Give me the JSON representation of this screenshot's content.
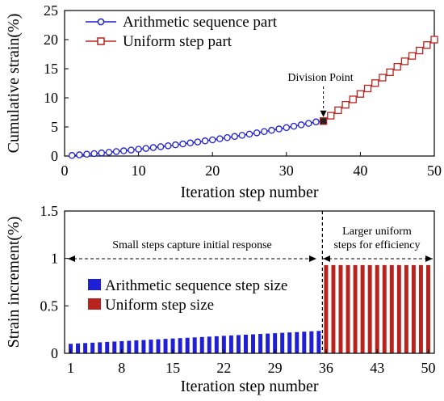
{
  "chart_data": [
    {
      "type": "line",
      "ylabel": "Cumulative strain(%)",
      "xlabel": "Iteration step number",
      "xlim": [
        0,
        50
      ],
      "ylim": [
        0,
        25
      ],
      "xticks": [
        "0",
        "10",
        "20",
        "30",
        "40",
        "50"
      ],
      "yticks": [
        "0",
        "5",
        "10",
        "15",
        "20",
        "25"
      ],
      "grid": false,
      "legend_position": "top-left",
      "annotation": "Division Point",
      "division_point": {
        "x": 35,
        "y": 6.0
      },
      "series": [
        {
          "name": "Arithmetic sequence part",
          "color": "#1f1fd6",
          "marker": "circle",
          "x": [
            1,
            2,
            3,
            4,
            5,
            6,
            7,
            8,
            9,
            10,
            11,
            12,
            13,
            14,
            15,
            16,
            17,
            18,
            19,
            20,
            21,
            22,
            23,
            24,
            25,
            26,
            27,
            28,
            29,
            30,
            31,
            32,
            33,
            34,
            35
          ],
          "y": [
            0.1,
            0.2,
            0.31,
            0.42,
            0.53,
            0.65,
            0.77,
            0.9,
            1.03,
            1.17,
            1.31,
            1.45,
            1.6,
            1.76,
            1.92,
            2.08,
            2.25,
            2.42,
            2.6,
            2.78,
            2.97,
            3.16,
            3.36,
            3.56,
            3.77,
            3.98,
            4.2,
            4.42,
            4.65,
            4.88,
            5.12,
            5.36,
            5.61,
            5.86,
            6.0
          ]
        },
        {
          "name": "Uniform step part",
          "color": "#b8231e",
          "marker": "square",
          "x": [
            35,
            36,
            37,
            38,
            39,
            40,
            41,
            42,
            43,
            44,
            45,
            46,
            47,
            48,
            49,
            50
          ],
          "y": [
            6.0,
            6.93,
            7.87,
            8.8,
            9.73,
            10.67,
            11.6,
            12.53,
            13.47,
            14.4,
            15.33,
            16.27,
            17.2,
            18.13,
            19.07,
            20.0
          ]
        }
      ]
    },
    {
      "type": "bar",
      "ylabel": "Strain increment(%)",
      "xlabel": "Iteration step number",
      "xlim": [
        1,
        50
      ],
      "ylim": [
        0,
        1.5
      ],
      "xticks": [
        "1",
        "8",
        "15",
        "22",
        "29",
        "36",
        "43",
        "50"
      ],
      "yticks": [
        "0",
        "0.5",
        "1",
        "1.5"
      ],
      "grid": false,
      "legend_position": "middle-left",
      "annotation_left": "Small steps capture initial response",
      "annotation_right_line1": "Larger uniform",
      "annotation_right_line2": "steps for efficiency",
      "series": [
        {
          "name": "Arithmetic sequence step size",
          "color": "#1f1fd6",
          "x": [
            1,
            2,
            3,
            4,
            5,
            6,
            7,
            8,
            9,
            10,
            11,
            12,
            13,
            14,
            15,
            16,
            17,
            18,
            19,
            20,
            21,
            22,
            23,
            24,
            25,
            26,
            27,
            28,
            29,
            30,
            31,
            32,
            33,
            34,
            35
          ],
          "values": [
            0.1,
            0.104,
            0.108,
            0.112,
            0.116,
            0.12,
            0.124,
            0.128,
            0.132,
            0.136,
            0.14,
            0.144,
            0.148,
            0.152,
            0.156,
            0.16,
            0.164,
            0.168,
            0.172,
            0.176,
            0.18,
            0.184,
            0.188,
            0.192,
            0.196,
            0.2,
            0.204,
            0.208,
            0.212,
            0.216,
            0.22,
            0.224,
            0.228,
            0.232,
            0.236
          ]
        },
        {
          "name": "Uniform step size",
          "color": "#b8231e",
          "x": [
            36,
            37,
            38,
            39,
            40,
            41,
            42,
            43,
            44,
            45,
            46,
            47,
            48,
            49,
            50
          ],
          "values": [
            0.93,
            0.93,
            0.93,
            0.93,
            0.93,
            0.93,
            0.93,
            0.93,
            0.93,
            0.93,
            0.93,
            0.93,
            0.93,
            0.93,
            0.93
          ]
        }
      ]
    }
  ]
}
